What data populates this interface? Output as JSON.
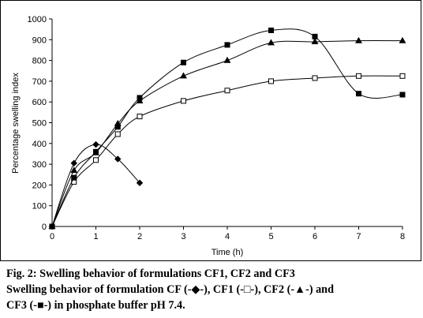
{
  "chart_data": {
    "type": "line",
    "xlabel": "Time (h)",
    "ylabel": "Percentage swelling index",
    "xlim": [
      0,
      8
    ],
    "ylim": [
      0,
      1000
    ],
    "x_ticks": [
      "0",
      "1",
      "2",
      "3",
      "4",
      "5",
      "6",
      "7",
      "8"
    ],
    "y_ticks": [
      "0",
      "100",
      "200",
      "300",
      "400",
      "500",
      "600",
      "700",
      "800",
      "900",
      "1000"
    ],
    "grid": false,
    "legend": "none",
    "series": [
      {
        "name": "CF",
        "marker": "diamond",
        "color": "#000000",
        "x": [
          0,
          0.5,
          1,
          1.5,
          2
        ],
        "y": [
          0,
          305,
          395,
          325,
          210
        ]
      },
      {
        "name": "CF1",
        "marker": "square-open",
        "color": "#000000",
        "x": [
          0,
          0.5,
          1,
          1.5,
          2,
          3,
          4,
          5,
          6,
          7,
          8
        ],
        "y": [
          0,
          215,
          320,
          445,
          530,
          605,
          655,
          700,
          715,
          725,
          725
        ]
      },
      {
        "name": "CF2",
        "marker": "triangle",
        "color": "#000000",
        "x": [
          0,
          0.5,
          1,
          1.5,
          2,
          3,
          4,
          5,
          6,
          7,
          8
        ],
        "y": [
          0,
          270,
          355,
          495,
          605,
          725,
          800,
          885,
          890,
          895,
          895
        ]
      },
      {
        "name": "CF3",
        "marker": "square-filled",
        "color": "#000000",
        "x": [
          0,
          0.5,
          1,
          1.5,
          2,
          3,
          4,
          5,
          6,
          7,
          8
        ],
        "y": [
          0,
          235,
          360,
          480,
          620,
          790,
          875,
          945,
          915,
          640,
          635
        ]
      }
    ]
  },
  "caption": {
    "line1": "Fig. 2: Swelling behavior of formulations CF1, CF2 and CF3",
    "line2": "Swelling behavior of formulation CF (-◆-), CF1 (-□-), CF2 (-▲-) and",
    "line3": "CF3 (-■-) in phosphate buffer pH 7.4."
  }
}
